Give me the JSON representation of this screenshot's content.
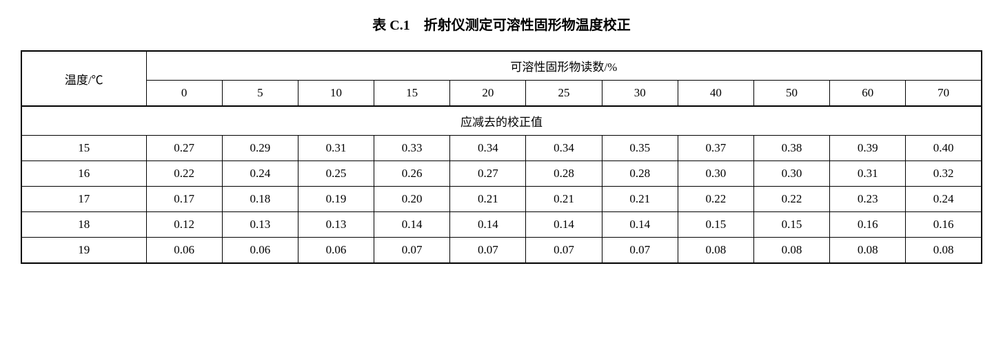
{
  "title": "表 C.1　折射仪测定可溶性固形物温度校正",
  "title_fontsize": 20,
  "cell_fontsize": 17,
  "table": {
    "temp_header": "温度/℃",
    "reading_header": "可溶性固形物读数/%",
    "col_values": [
      "0",
      "5",
      "10",
      "15",
      "20",
      "25",
      "30",
      "40",
      "50",
      "60",
      "70"
    ],
    "section_header": "应减去的校正值",
    "rows": [
      {
        "temp": "15",
        "vals": [
          "0.27",
          "0.29",
          "0.31",
          "0.33",
          "0.34",
          "0.34",
          "0.35",
          "0.37",
          "0.38",
          "0.39",
          "0.40"
        ]
      },
      {
        "temp": "16",
        "vals": [
          "0.22",
          "0.24",
          "0.25",
          "0.26",
          "0.27",
          "0.28",
          "0.28",
          "0.30",
          "0.30",
          "0.31",
          "0.32"
        ]
      },
      {
        "temp": "17",
        "vals": [
          "0.17",
          "0.18",
          "0.19",
          "0.20",
          "0.21",
          "0.21",
          "0.21",
          "0.22",
          "0.22",
          "0.23",
          "0.24"
        ]
      },
      {
        "temp": "18",
        "vals": [
          "0.12",
          "0.13",
          "0.13",
          "0.14",
          "0.14",
          "0.14",
          "0.14",
          "0.15",
          "0.15",
          "0.16",
          "0.16"
        ]
      },
      {
        "temp": "19",
        "vals": [
          "0.06",
          "0.06",
          "0.06",
          "0.07",
          "0.07",
          "0.07",
          "0.07",
          "0.08",
          "0.08",
          "0.08",
          "0.08"
        ]
      }
    ]
  }
}
